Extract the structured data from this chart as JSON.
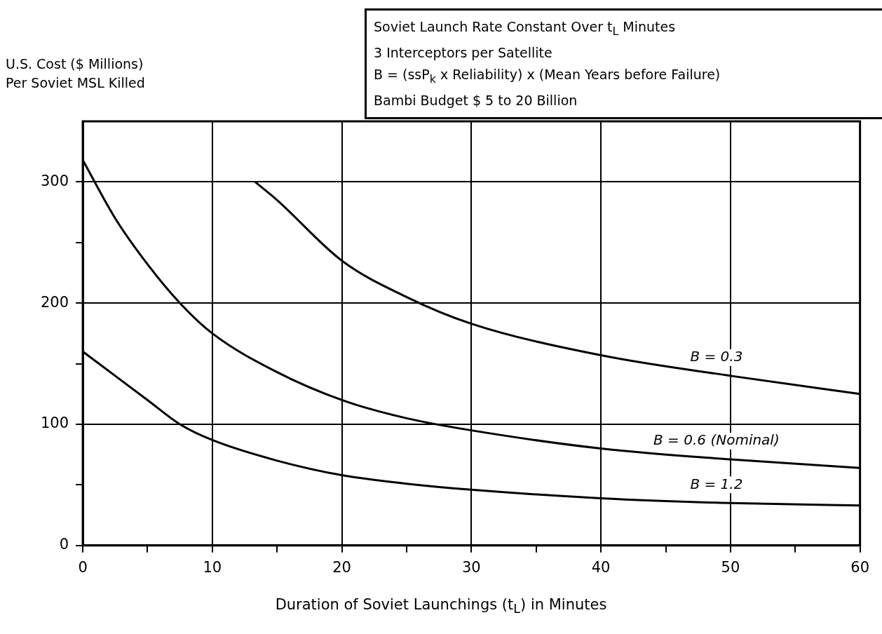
{
  "chart_data": {
    "type": "line",
    "xlabel": "Duration of Soviet Launchings (t$_{L}$) in Minutes",
    "ylabel": "U.S. Cost ($ Millions)\nPer Soviet MSL Killed",
    "xlim": [
      0,
      60
    ],
    "xticks": [
      0,
      {
        "value": 5,
        "label": null
      },
      10,
      {
        "value": 15,
        "label": null
      },
      20,
      {
        "value": 25,
        "label": null
      },
      30,
      {
        "value": 35,
        "label": null
      },
      40,
      {
        "value": 45,
        "label": null
      },
      50,
      {
        "value": 55,
        "label": null
      },
      60
    ],
    "ylim": [
      0,
      350
    ],
    "yticks": [
      0,
      {
        "value": 50,
        "label": null
      },
      100,
      {
        "value": 150,
        "label": null
      },
      200,
      {
        "value": 250,
        "label": null
      },
      300
    ],
    "grid": true,
    "series": [
      {
        "name": "B = 0.3",
        "color": "#000000",
        "x": [
          13.3,
          15,
          20,
          25,
          30,
          40,
          50,
          60
        ],
        "values": [
          300,
          285,
          235,
          205,
          183,
          157,
          140,
          125
        ]
      },
      {
        "name": "B = 0.6 (Nominal)",
        "color": "#000000",
        "x": [
          0,
          2.5,
          5,
          7.5,
          10,
          15,
          20,
          25,
          30,
          40,
          50,
          60
        ],
        "values": [
          318,
          270,
          232,
          200,
          175,
          143,
          120,
          105,
          95,
          80,
          71,
          64
        ]
      },
      {
        "name": "B = 1.2",
        "color": "#000000",
        "x": [
          0,
          2.5,
          5,
          7.5,
          10,
          15,
          20,
          25,
          30,
          40,
          50,
          60
        ],
        "values": [
          160,
          140,
          120,
          100,
          87,
          70,
          58,
          51,
          46,
          39,
          35,
          33
        ]
      }
    ],
    "annotations": [
      "Soviet Launch Rate Constant Over t$_{L}$ Minutes",
      "3 Interceptors per Satellite",
      "B = (ssP$_{k}$ x Reliability) x (Mean Years before Failure)",
      "Bambi Budget $ 5 to 20 Billion"
    ]
  }
}
